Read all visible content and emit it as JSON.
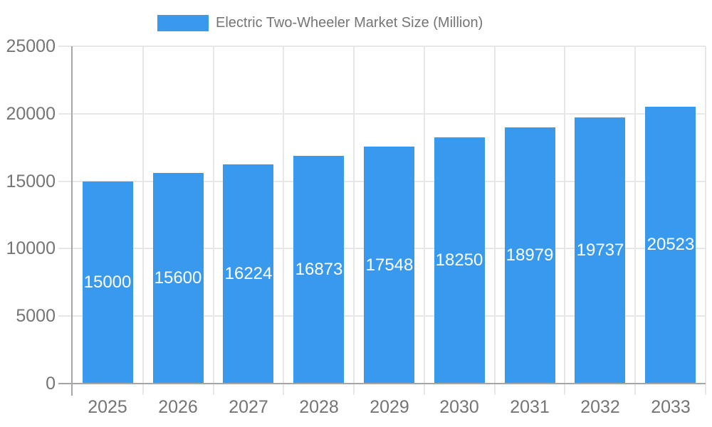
{
  "legend": {
    "label": "Electric Two-Wheeler Market Size (Million)"
  },
  "chart_data": {
    "type": "bar",
    "title": "Electric Two-Wheeler Market Size (Million)",
    "categories": [
      "2025",
      "2026",
      "2027",
      "2028",
      "2029",
      "2030",
      "2031",
      "2032",
      "2033"
    ],
    "values": [
      15000,
      15600,
      16224,
      16873,
      17548,
      18250,
      18979,
      19737,
      20523
    ],
    "series": [
      {
        "name": "Electric Two-Wheeler Market Size (Million)",
        "values": [
          15000,
          15600,
          16224,
          16873,
          17548,
          18250,
          18979,
          19737,
          20523
        ]
      }
    ],
    "xlabel": "",
    "ylabel": "",
    "ylim": [
      0,
      25000
    ],
    "yticks": [
      0,
      5000,
      10000,
      15000,
      20000,
      25000
    ],
    "grid": true,
    "legend_position": "top-center",
    "value_labels": "inside-center",
    "colors": {
      "bar": "#3999EC",
      "tick_text": "#757575",
      "grid": "#E7E7E7",
      "axis": "#A6A6A6",
      "value_label": "#FFFFFF"
    }
  }
}
